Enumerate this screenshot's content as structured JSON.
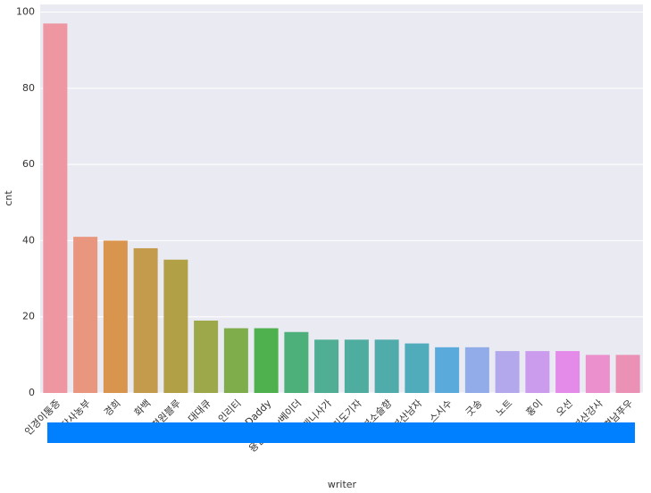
{
  "chart_data": {
    "type": "bar",
    "xlabel": "writer",
    "ylabel": "cnt",
    "categories": [
      "인경이통증",
      "할당사농부",
      "경희",
      "화백",
      "평원블루",
      "대대큐",
      "인리티",
      "성남vDaddy",
      "용인수지v베이더",
      "케니사가",
      "경기도기자",
      "부소슬향",
      "부산남자",
      "스시수",
      "굿송",
      "노트",
      "홍이",
      "오선",
      "부산강사",
      "경남푸우"
    ],
    "values": [
      97,
      41,
      40,
      38,
      35,
      19,
      17,
      17,
      16,
      14,
      14,
      14,
      13,
      12,
      12,
      11,
      11,
      11,
      10,
      10
    ],
    "colors": [
      "#ee97a2",
      "#e8967e",
      "#d9954e",
      "#c49a4c",
      "#b1a046",
      "#9ca84a",
      "#80ad4c",
      "#4fb04e",
      "#4db07a",
      "#4fae93",
      "#4fad9f",
      "#4facab",
      "#50abbb",
      "#5aabdc",
      "#92acea",
      "#b4a8ec",
      "#cb9cee",
      "#e48ae9",
      "#ec8fcd",
      "#eb91b6"
    ],
    "ylim": [
      0,
      102
    ],
    "yticks": [
      0,
      20,
      40,
      60,
      80,
      100
    ],
    "grid": true
  }
}
